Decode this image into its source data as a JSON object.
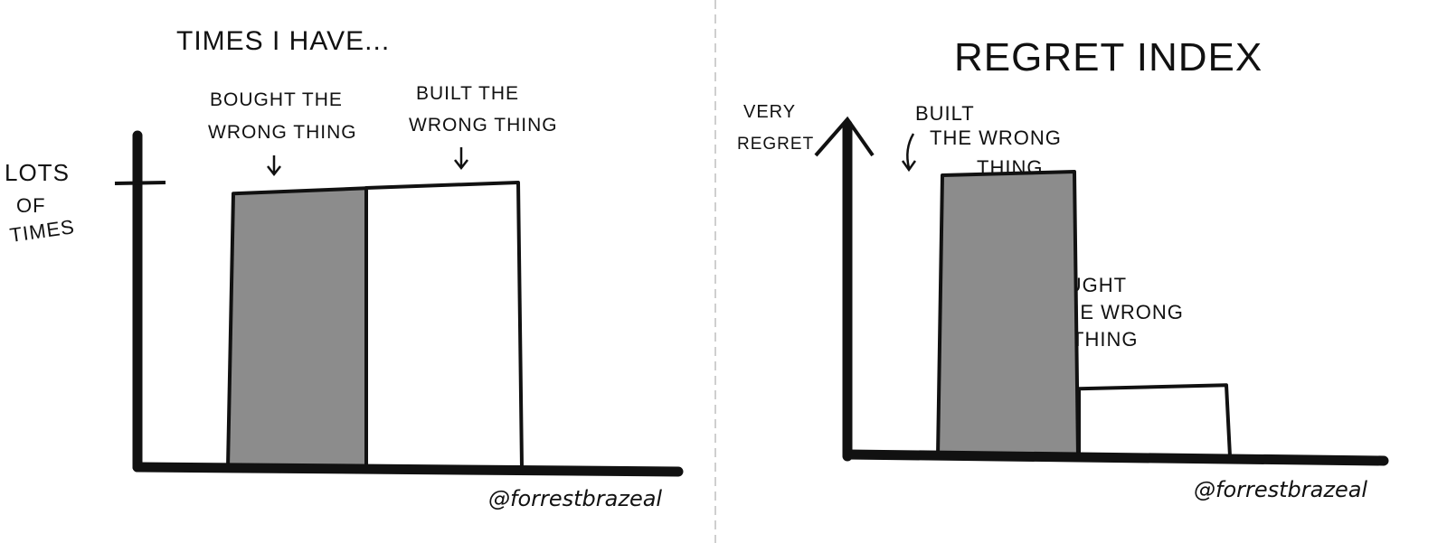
{
  "chart_data": [
    {
      "type": "bar",
      "title": "TIMES I HAVE...",
      "ylabel": "LOTS OF TIMES",
      "xlabel": "",
      "categories": [
        "BOUGHT THE WRONG THING",
        "BUILT THE WRONG THING"
      ],
      "category_lines": [
        [
          "BOUGHT THE",
          "WRONG THING"
        ],
        [
          "BUILT THE",
          "WRONG THING"
        ]
      ],
      "values": [
        0.98,
        1.0
      ],
      "ytick_label": "LOTS OF TIMES",
      "ylim": [
        0,
        1.2
      ],
      "grid": false,
      "colors": [
        "#8c8c8c",
        "#ffffff"
      ],
      "credit": "@forrestbrazeal"
    },
    {
      "type": "bar",
      "title": "REGRET INDEX",
      "ylabel": "VERY REGRET",
      "ylabel_lines": [
        "VERY",
        "REGRET"
      ],
      "xlabel": "",
      "categories": [
        "BUILT THE WRONG THING",
        "BOUGHT THE WRONG THING"
      ],
      "category_lines": [
        [
          "BUILT",
          "THE WRONG",
          "THING"
        ],
        [
          "BOUGHT",
          "THE WRONG",
          "THING"
        ]
      ],
      "values": [
        0.84,
        0.21
      ],
      "ylim": [
        0,
        1.0
      ],
      "grid": false,
      "colors": [
        "#8c8c8c",
        "#ffffff"
      ],
      "credit": "@forrestbrazeal"
    }
  ],
  "divider_color": "#cccccc"
}
